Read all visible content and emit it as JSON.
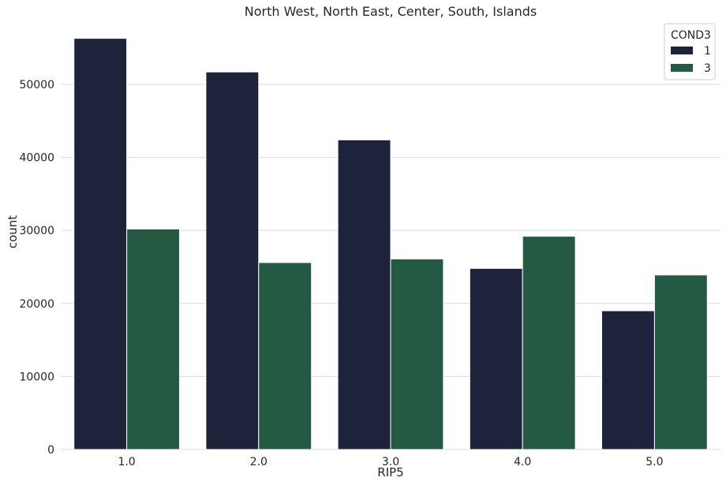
{
  "chart_data": {
    "type": "bar",
    "title": "North West, North East, Center, South, Islands",
    "xlabel": "RIP5",
    "ylabel": "count",
    "categories": [
      "1.0",
      "2.0",
      "3.0",
      "4.0",
      "5.0"
    ],
    "ylim": [
      0,
      59500
    ],
    "yticks": [
      0,
      10000,
      20000,
      30000,
      40000,
      50000
    ],
    "grid": true,
    "legend": {
      "title": "COND3",
      "placement": "top-right"
    },
    "series": [
      {
        "name": "1",
        "color": "#1e233c",
        "values": [
          56300,
          51700,
          42400,
          24800,
          19000
        ]
      },
      {
        "name": "3",
        "color": "#245a43",
        "values": [
          30200,
          25600,
          26100,
          29200,
          23900
        ]
      }
    ]
  }
}
